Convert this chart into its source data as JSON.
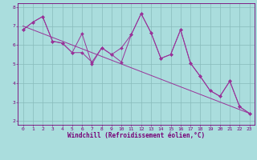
{
  "xlabel": "Windchill (Refroidissement éolien,°C)",
  "line_color": "#993399",
  "bg_color": "#aadddd",
  "plot_bg_color": "#aadddd",
  "grid_color": "#88bbbb",
  "xlim": [
    -0.5,
    23.5
  ],
  "ylim": [
    1.8,
    8.2
  ],
  "xticks": [
    0,
    1,
    2,
    3,
    4,
    5,
    6,
    7,
    8,
    9,
    10,
    11,
    12,
    13,
    14,
    15,
    16,
    17,
    18,
    19,
    20,
    21,
    22,
    23
  ],
  "yticks": [
    2,
    3,
    4,
    5,
    6,
    7,
    8
  ],
  "series1_x": [
    0,
    1,
    2,
    3,
    4,
    5,
    6,
    7,
    8,
    9,
    10,
    11,
    12,
    13,
    14,
    15,
    16,
    17,
    18,
    19,
    20,
    21,
    22,
    23
  ],
  "series1_y": [
    6.8,
    7.2,
    7.5,
    6.2,
    6.1,
    5.6,
    6.6,
    5.0,
    5.85,
    5.5,
    5.1,
    6.55,
    7.65,
    6.65,
    5.3,
    5.5,
    6.8,
    5.05,
    4.35,
    3.6,
    3.3,
    4.1,
    2.75,
    2.4
  ],
  "series2_x": [
    0,
    1,
    2,
    3,
    4,
    5,
    6,
    7,
    8,
    9,
    10,
    11,
    12,
    13,
    14,
    15,
    16,
    17,
    18,
    19,
    20,
    21,
    22,
    23
  ],
  "series2_y": [
    6.8,
    7.2,
    7.5,
    6.2,
    6.1,
    5.6,
    5.6,
    5.1,
    5.85,
    5.5,
    5.85,
    6.55,
    7.65,
    6.65,
    5.3,
    5.5,
    6.8,
    5.05,
    4.35,
    3.6,
    3.3,
    4.1,
    2.75,
    2.4
  ],
  "trend_x": [
    0,
    23
  ],
  "trend_y": [
    7.0,
    2.4
  ],
  "font_color": "#770077",
  "font_name": "monospace",
  "xlabel_fontsize": 5.5,
  "tick_fontsize": 4.5
}
